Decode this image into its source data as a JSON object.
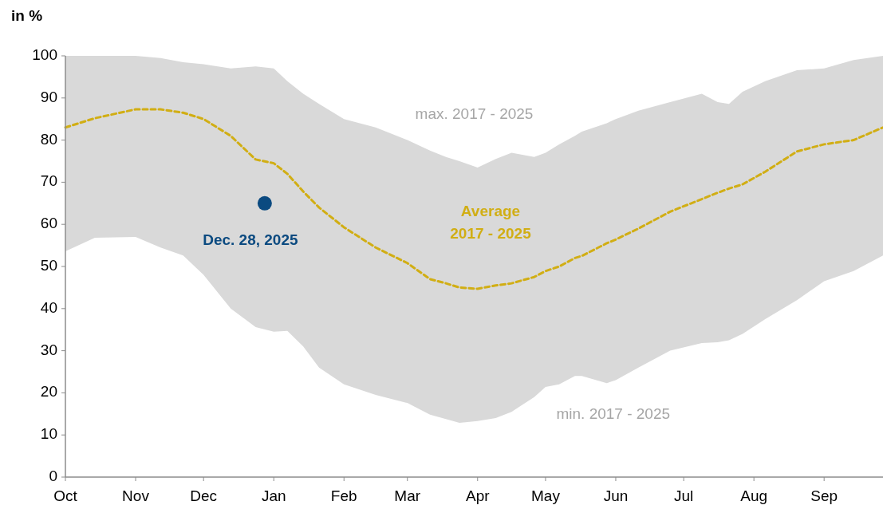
{
  "chart_data": {
    "type": "line",
    "ylabel": "in %",
    "x": [
      "2025-10-01",
      "2025-10-14",
      "2025-11-01",
      "2025-11-12",
      "2025-11-22",
      "2025-12-01",
      "2025-12-13",
      "2025-12-24",
      "2026-01-01",
      "2026-01-07",
      "2026-01-14",
      "2026-01-21",
      "2026-02-01",
      "2026-02-15",
      "2026-03-01",
      "2026-03-11",
      "2026-03-18",
      "2026-03-24",
      "2026-04-01",
      "2026-04-09",
      "2026-04-16",
      "2026-04-26",
      "2026-05-01",
      "2026-05-07",
      "2026-05-14",
      "2026-05-17",
      "2026-05-28",
      "2026-06-01",
      "2026-06-11",
      "2026-06-25",
      "2026-07-09",
      "2026-07-16",
      "2026-07-21",
      "2026-07-27",
      "2026-08-06",
      "2026-08-20",
      "2026-09-01",
      "2026-09-14",
      "2026-09-27"
    ],
    "xlim": [
      "2025-10-01",
      "2026-09-27"
    ],
    "xticks": [
      {
        "value": "2025-10-01",
        "label": "Oct"
      },
      {
        "value": "2025-11-01",
        "label": "Nov"
      },
      {
        "value": "2025-12-01",
        "label": "Dec"
      },
      {
        "value": "2026-01-01",
        "label": "Jan"
      },
      {
        "value": "2026-02-01",
        "label": "Feb"
      },
      {
        "value": "2026-03-01",
        "label": "Mar"
      },
      {
        "value": "2026-04-01",
        "label": "Apr"
      },
      {
        "value": "2026-05-01",
        "label": "May"
      },
      {
        "value": "2026-06-01",
        "label": "Jun"
      },
      {
        "value": "2026-07-01",
        "label": "Jul"
      },
      {
        "value": "2026-08-01",
        "label": "Aug"
      },
      {
        "value": "2026-09-01",
        "label": "Sep"
      }
    ],
    "ylim": [
      0,
      100
    ],
    "yticks": [
      0,
      10,
      20,
      30,
      40,
      50,
      60,
      70,
      80,
      90,
      100
    ],
    "series": [
      {
        "name": "Average 2017 - 2025",
        "color": "#d1ae14",
        "line_style": "dashed",
        "values": [
          83,
          85.2,
          87.3,
          87.3,
          86.5,
          85,
          81,
          75.4,
          74.5,
          72,
          67.8,
          64,
          59.3,
          54.5,
          50.8,
          47,
          46,
          45,
          44.7,
          45.5,
          46,
          47.5,
          48.9,
          50,
          52,
          52.5,
          55.5,
          56.4,
          59,
          63,
          66,
          67.5,
          68.5,
          69.5,
          72.5,
          77.3,
          79,
          80,
          83
        ],
        "lower": [
          53.6,
          56.8,
          57,
          54.5,
          52.6,
          48,
          40,
          35.6,
          34.5,
          34.7,
          31,
          26,
          22,
          19.5,
          17.6,
          14.8,
          13.8,
          12.9,
          13.3,
          14,
          15.5,
          19,
          21.4,
          22,
          24,
          24,
          22.3,
          23,
          26,
          30,
          31.8,
          32,
          32.5,
          34,
          37.5,
          42,
          46.5,
          48.9,
          52.6
        ],
        "upper": [
          100,
          100,
          100,
          99.5,
          98.5,
          98,
          97,
          97.5,
          97,
          94,
          91,
          88.6,
          85,
          83,
          80,
          77.5,
          76,
          75,
          73.5,
          75.5,
          77,
          76,
          77,
          79,
          81,
          82,
          84,
          85,
          87,
          89,
          91,
          89,
          88.6,
          91.5,
          94,
          96.6,
          97,
          99,
          100
        ]
      },
      {
        "name": "Dec. 28, 2025",
        "type": "scatter",
        "color": "#0b4a80",
        "marker": "circle",
        "x": [
          "2025-12-28"
        ],
        "values": [
          65
        ]
      }
    ],
    "annotations": [
      "max. 2017 - 2025",
      "min. 2017 - 2025"
    ]
  }
}
